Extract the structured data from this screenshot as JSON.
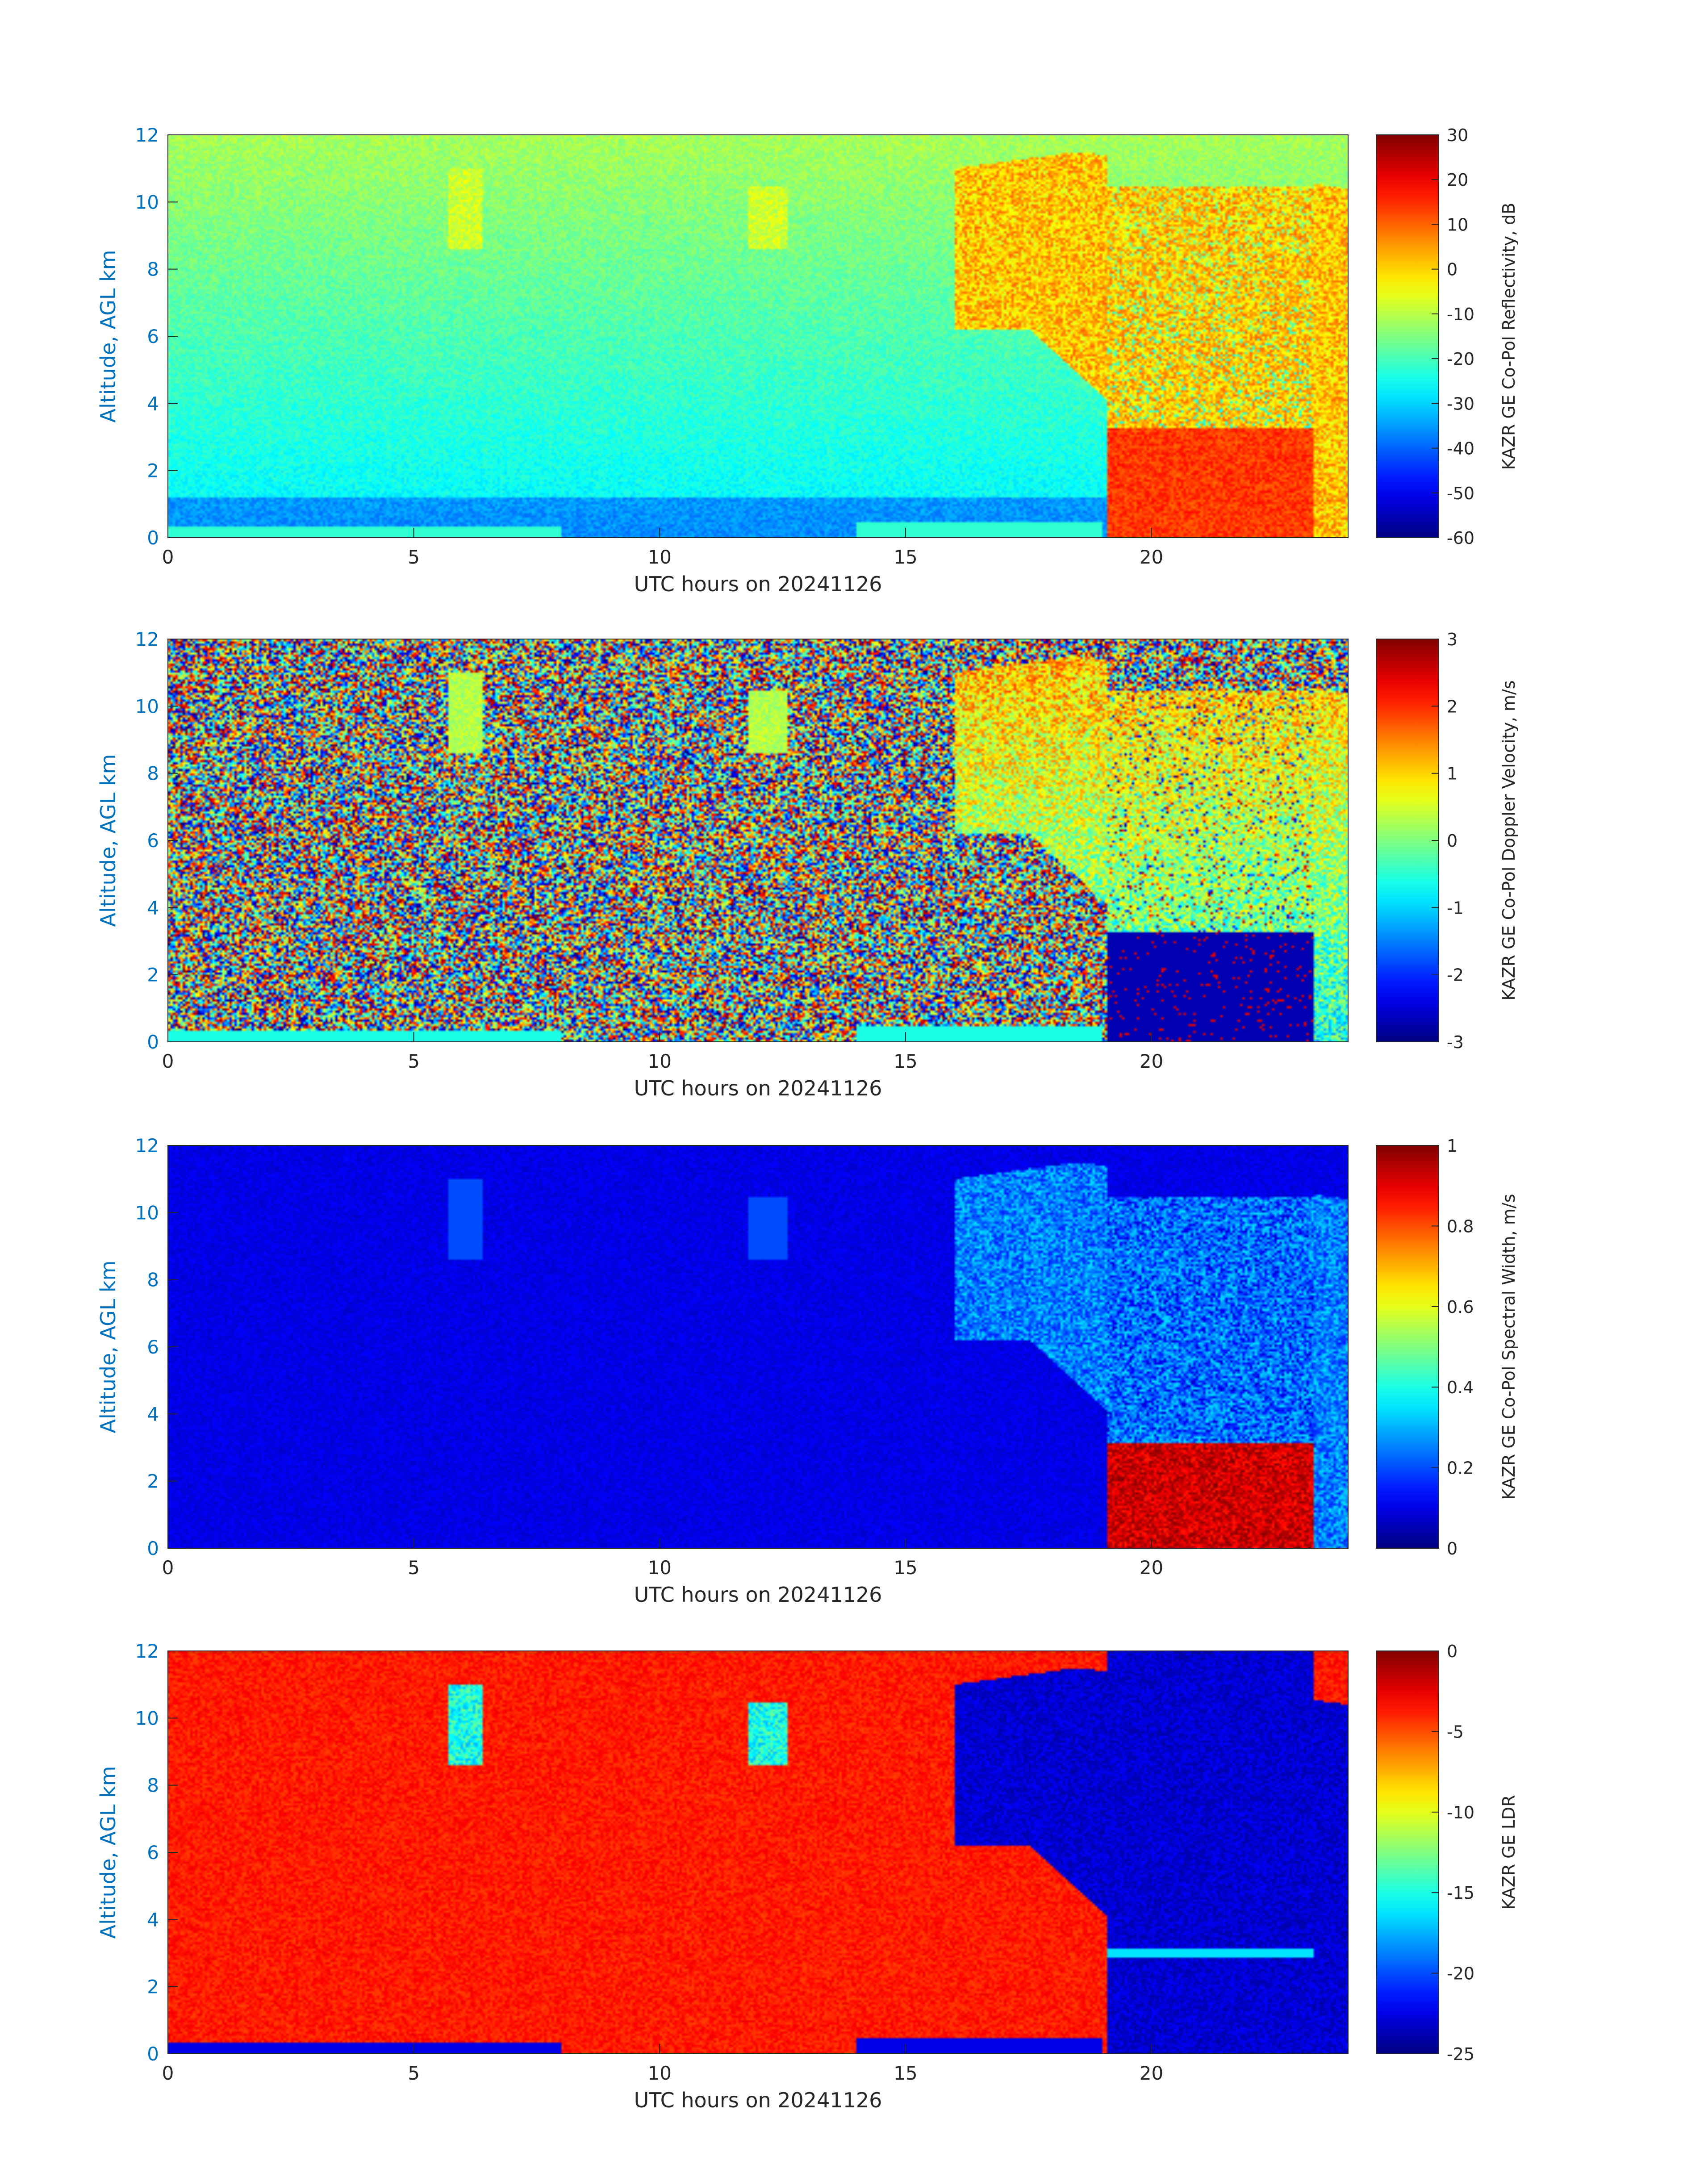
{
  "colors": {
    "axis_blue": "#0072bd",
    "colormap_jet": [
      "#00008f",
      "#0000ff",
      "#00ffff",
      "#ffff00",
      "#ff0000",
      "#800000"
    ]
  },
  "chart_data": [
    {
      "type": "heatmap",
      "variable": "reflectivity",
      "title": "",
      "xlabel": "UTC hours on 20241126",
      "ylabel": "Altitude, AGL km",
      "xlim": [
        0,
        24
      ],
      "ylim": [
        0,
        12
      ],
      "x_ticks": [
        "0",
        "5",
        "10",
        "15",
        "20"
      ],
      "y_ticks": [
        "0",
        "2",
        "4",
        "6",
        "8",
        "10",
        "12"
      ],
      "colorbar": {
        "label": "KAZR GE Co-Pol Reflectivity, dB",
        "range": [
          -60,
          30
        ],
        "ticks": [
          "30",
          "20",
          "10",
          "0",
          "-10",
          "-20",
          "-30",
          "-40",
          "-50",
          "-60"
        ]
      }
    },
    {
      "type": "heatmap",
      "variable": "velocity",
      "title": "",
      "xlabel": "UTC hours on 20241126",
      "ylabel": "Altitude, AGL km",
      "xlim": [
        0,
        24
      ],
      "ylim": [
        0,
        12
      ],
      "x_ticks": [
        "0",
        "5",
        "10",
        "15",
        "20"
      ],
      "y_ticks": [
        "0",
        "2",
        "4",
        "6",
        "8",
        "10",
        "12"
      ],
      "colorbar": {
        "label": "KAZR GE Co-Pol Doppler Velocity, m/s",
        "range": [
          -3,
          3
        ],
        "ticks": [
          "3",
          "2",
          "1",
          "0",
          "-1",
          "-2",
          "-3"
        ]
      }
    },
    {
      "type": "heatmap",
      "variable": "width",
      "title": "",
      "xlabel": "UTC hours on 20241126",
      "ylabel": "Altitude, AGL km",
      "xlim": [
        0,
        24
      ],
      "ylim": [
        0,
        12
      ],
      "x_ticks": [
        "0",
        "5",
        "10",
        "15",
        "20"
      ],
      "y_ticks": [
        "0",
        "2",
        "4",
        "6",
        "8",
        "10",
        "12"
      ],
      "colorbar": {
        "label": "KAZR GE Co-Pol Spectral Width, m/s",
        "range": [
          0,
          1
        ],
        "ticks": [
          "1",
          "0.8",
          "0.6",
          "0.4",
          "0.2",
          "0"
        ]
      }
    },
    {
      "type": "heatmap",
      "variable": "ldr",
      "title": "",
      "xlabel": "UTC hours on 20241126",
      "ylabel": "Altitude, AGL km",
      "xlim": [
        0,
        24
      ],
      "ylim": [
        0,
        12
      ],
      "x_ticks": [
        "0",
        "5",
        "10",
        "15",
        "20"
      ],
      "y_ticks": [
        "0",
        "2",
        "4",
        "6",
        "8",
        "10",
        "12"
      ],
      "colorbar": {
        "label": "KAZR GE LDR",
        "range": [
          -25,
          0
        ],
        "ticks": [
          "0",
          "-5",
          "-10",
          "-15",
          "-20",
          "-25"
        ]
      }
    }
  ]
}
